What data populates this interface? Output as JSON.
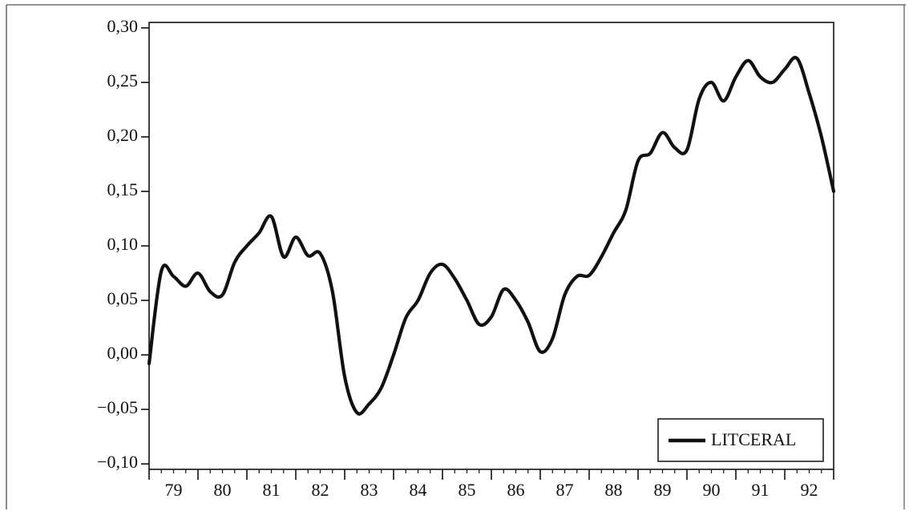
{
  "chart_data": {
    "type": "line",
    "title": "",
    "xlabel": "",
    "ylabel": "",
    "x_tick_labels": [
      "79",
      "80",
      "81",
      "82",
      "83",
      "84",
      "85",
      "86",
      "87",
      "88",
      "89",
      "90",
      "91",
      "92"
    ],
    "y_tick_labels": [
      "0,30",
      "0,25",
      "0,20",
      "0,15",
      "0,10",
      "0,05",
      "0,00",
      "−0,05",
      "−0,10"
    ],
    "y_tick_values": [
      0.3,
      0.25,
      0.2,
      0.15,
      0.1,
      0.05,
      0.0,
      -0.05,
      -0.1
    ],
    "xlim": [
      1979.0,
      1993.0
    ],
    "ylim": [
      -0.105,
      0.305
    ],
    "grid": false,
    "legend_position": "bottom-right",
    "line_color": "#111111",
    "series": [
      {
        "name": "LITCERAL",
        "x": [
          1979.0,
          1979.25,
          1979.5,
          1979.75,
          1980.0,
          1980.25,
          1980.5,
          1980.75,
          1981.0,
          1981.25,
          1981.5,
          1981.75,
          1982.0,
          1982.25,
          1982.5,
          1982.75,
          1983.0,
          1983.25,
          1983.5,
          1983.75,
          1984.0,
          1984.25,
          1984.5,
          1984.75,
          1985.0,
          1985.25,
          1985.5,
          1985.75,
          1986.0,
          1986.25,
          1986.5,
          1986.75,
          1987.0,
          1987.25,
          1987.5,
          1987.75,
          1988.0,
          1988.25,
          1988.5,
          1988.75,
          1989.0,
          1989.25,
          1989.5,
          1989.75,
          1990.0,
          1990.25,
          1990.5,
          1990.75,
          1991.0,
          1991.25,
          1991.5,
          1991.75,
          1992.0,
          1992.25,
          1992.5,
          1992.75,
          1993.0
        ],
        "y": [
          -0.008,
          0.077,
          0.072,
          0.063,
          0.075,
          0.058,
          0.055,
          0.085,
          0.1,
          0.112,
          0.127,
          0.09,
          0.108,
          0.091,
          0.093,
          0.058,
          -0.02,
          -0.053,
          -0.045,
          -0.03,
          0.0,
          0.034,
          0.05,
          0.075,
          0.083,
          0.07,
          0.05,
          0.028,
          0.035,
          0.06,
          0.05,
          0.03,
          0.003,
          0.015,
          0.055,
          0.072,
          0.073,
          0.09,
          0.112,
          0.133,
          0.178,
          0.185,
          0.204,
          0.19,
          0.188,
          0.235,
          0.25,
          0.233,
          0.255,
          0.27,
          0.255,
          0.25,
          0.262,
          0.272,
          0.24,
          0.2,
          0.15
        ]
      }
    ]
  }
}
